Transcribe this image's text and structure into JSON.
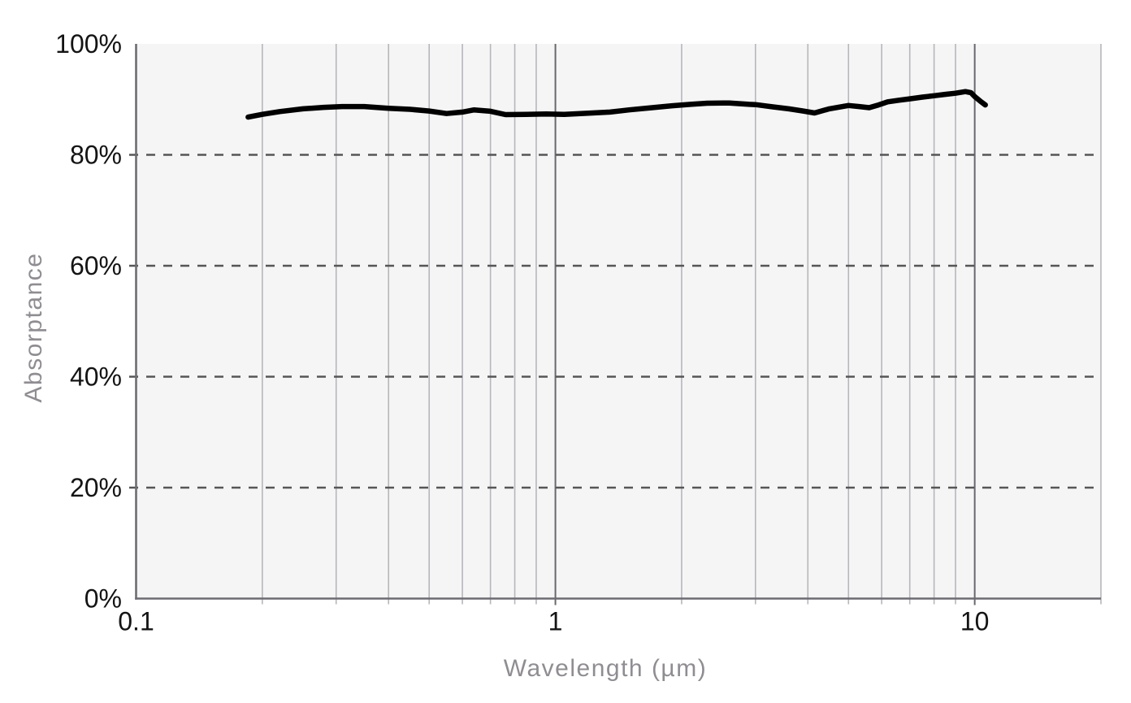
{
  "chart_data": {
    "type": "line",
    "title": "",
    "xlabel": "Wavelength (µm)",
    "ylabel": "Absorptance",
    "x_scale": "log",
    "x_range": [
      0.1,
      20
    ],
    "y_range": [
      0,
      100
    ],
    "grid": "on",
    "legend": "none",
    "x_ticks": [
      {
        "value": 0.1,
        "label": "0.1"
      },
      {
        "value": 1,
        "label": "1"
      },
      {
        "value": 10,
        "label": "10"
      }
    ],
    "y_ticks": [
      {
        "value": 0,
        "label": "0%"
      },
      {
        "value": 20,
        "label": "20%"
      },
      {
        "value": 40,
        "label": "40%"
      },
      {
        "value": 60,
        "label": "60%"
      },
      {
        "value": 80,
        "label": "80%"
      },
      {
        "value": 100,
        "label": "100%"
      }
    ],
    "x_minor_gridlines": [
      0.2,
      0.3,
      0.4,
      0.5,
      0.6,
      0.7,
      0.8,
      0.9,
      2,
      3,
      4,
      5,
      6,
      7,
      8,
      9,
      20
    ],
    "x_major_gridlines": [
      1,
      10
    ],
    "y_gridlines_dashed": [
      20,
      40,
      60,
      80
    ],
    "series": [
      {
        "name": "Absorptance",
        "unit": "%",
        "points": [
          [
            0.185,
            86.8
          ],
          [
            0.2,
            87.3
          ],
          [
            0.22,
            87.8
          ],
          [
            0.25,
            88.3
          ],
          [
            0.28,
            88.55
          ],
          [
            0.31,
            88.7
          ],
          [
            0.35,
            88.7
          ],
          [
            0.4,
            88.4
          ],
          [
            0.45,
            88.2
          ],
          [
            0.5,
            87.9
          ],
          [
            0.55,
            87.45
          ],
          [
            0.6,
            87.7
          ],
          [
            0.64,
            88.1
          ],
          [
            0.7,
            87.85
          ],
          [
            0.76,
            87.25
          ],
          [
            0.85,
            87.3
          ],
          [
            0.95,
            87.35
          ],
          [
            1.05,
            87.3
          ],
          [
            1.2,
            87.5
          ],
          [
            1.35,
            87.7
          ],
          [
            1.5,
            88.1
          ],
          [
            1.7,
            88.5
          ],
          [
            1.9,
            88.85
          ],
          [
            2.1,
            89.1
          ],
          [
            2.3,
            89.3
          ],
          [
            2.6,
            89.35
          ],
          [
            2.9,
            89.1
          ],
          [
            3.0,
            89.05
          ],
          [
            3.3,
            88.65
          ],
          [
            3.6,
            88.3
          ],
          [
            3.9,
            87.9
          ],
          [
            4.15,
            87.55
          ],
          [
            4.5,
            88.3
          ],
          [
            5.0,
            88.9
          ],
          [
            5.3,
            88.7
          ],
          [
            5.6,
            88.5
          ],
          [
            5.9,
            89.0
          ],
          [
            6.2,
            89.55
          ],
          [
            6.6,
            89.85
          ],
          [
            7.0,
            90.1
          ],
          [
            7.5,
            90.4
          ],
          [
            8.0,
            90.65
          ],
          [
            8.5,
            90.9
          ],
          [
            9.0,
            91.1
          ],
          [
            9.5,
            91.4
          ],
          [
            9.8,
            91.2
          ],
          [
            10.0,
            90.5
          ],
          [
            10.3,
            89.7
          ],
          [
            10.6,
            89.0
          ]
        ]
      }
    ]
  },
  "colors": {
    "line": "#000000",
    "plot_bg": "#f5f5f6",
    "grid_minor": "#b7b6bc",
    "grid_major": "#69686d",
    "grid_dash": "#565656",
    "axis": "#6d6c72",
    "tick_label": "#141414",
    "axis_title": "#908d92"
  }
}
